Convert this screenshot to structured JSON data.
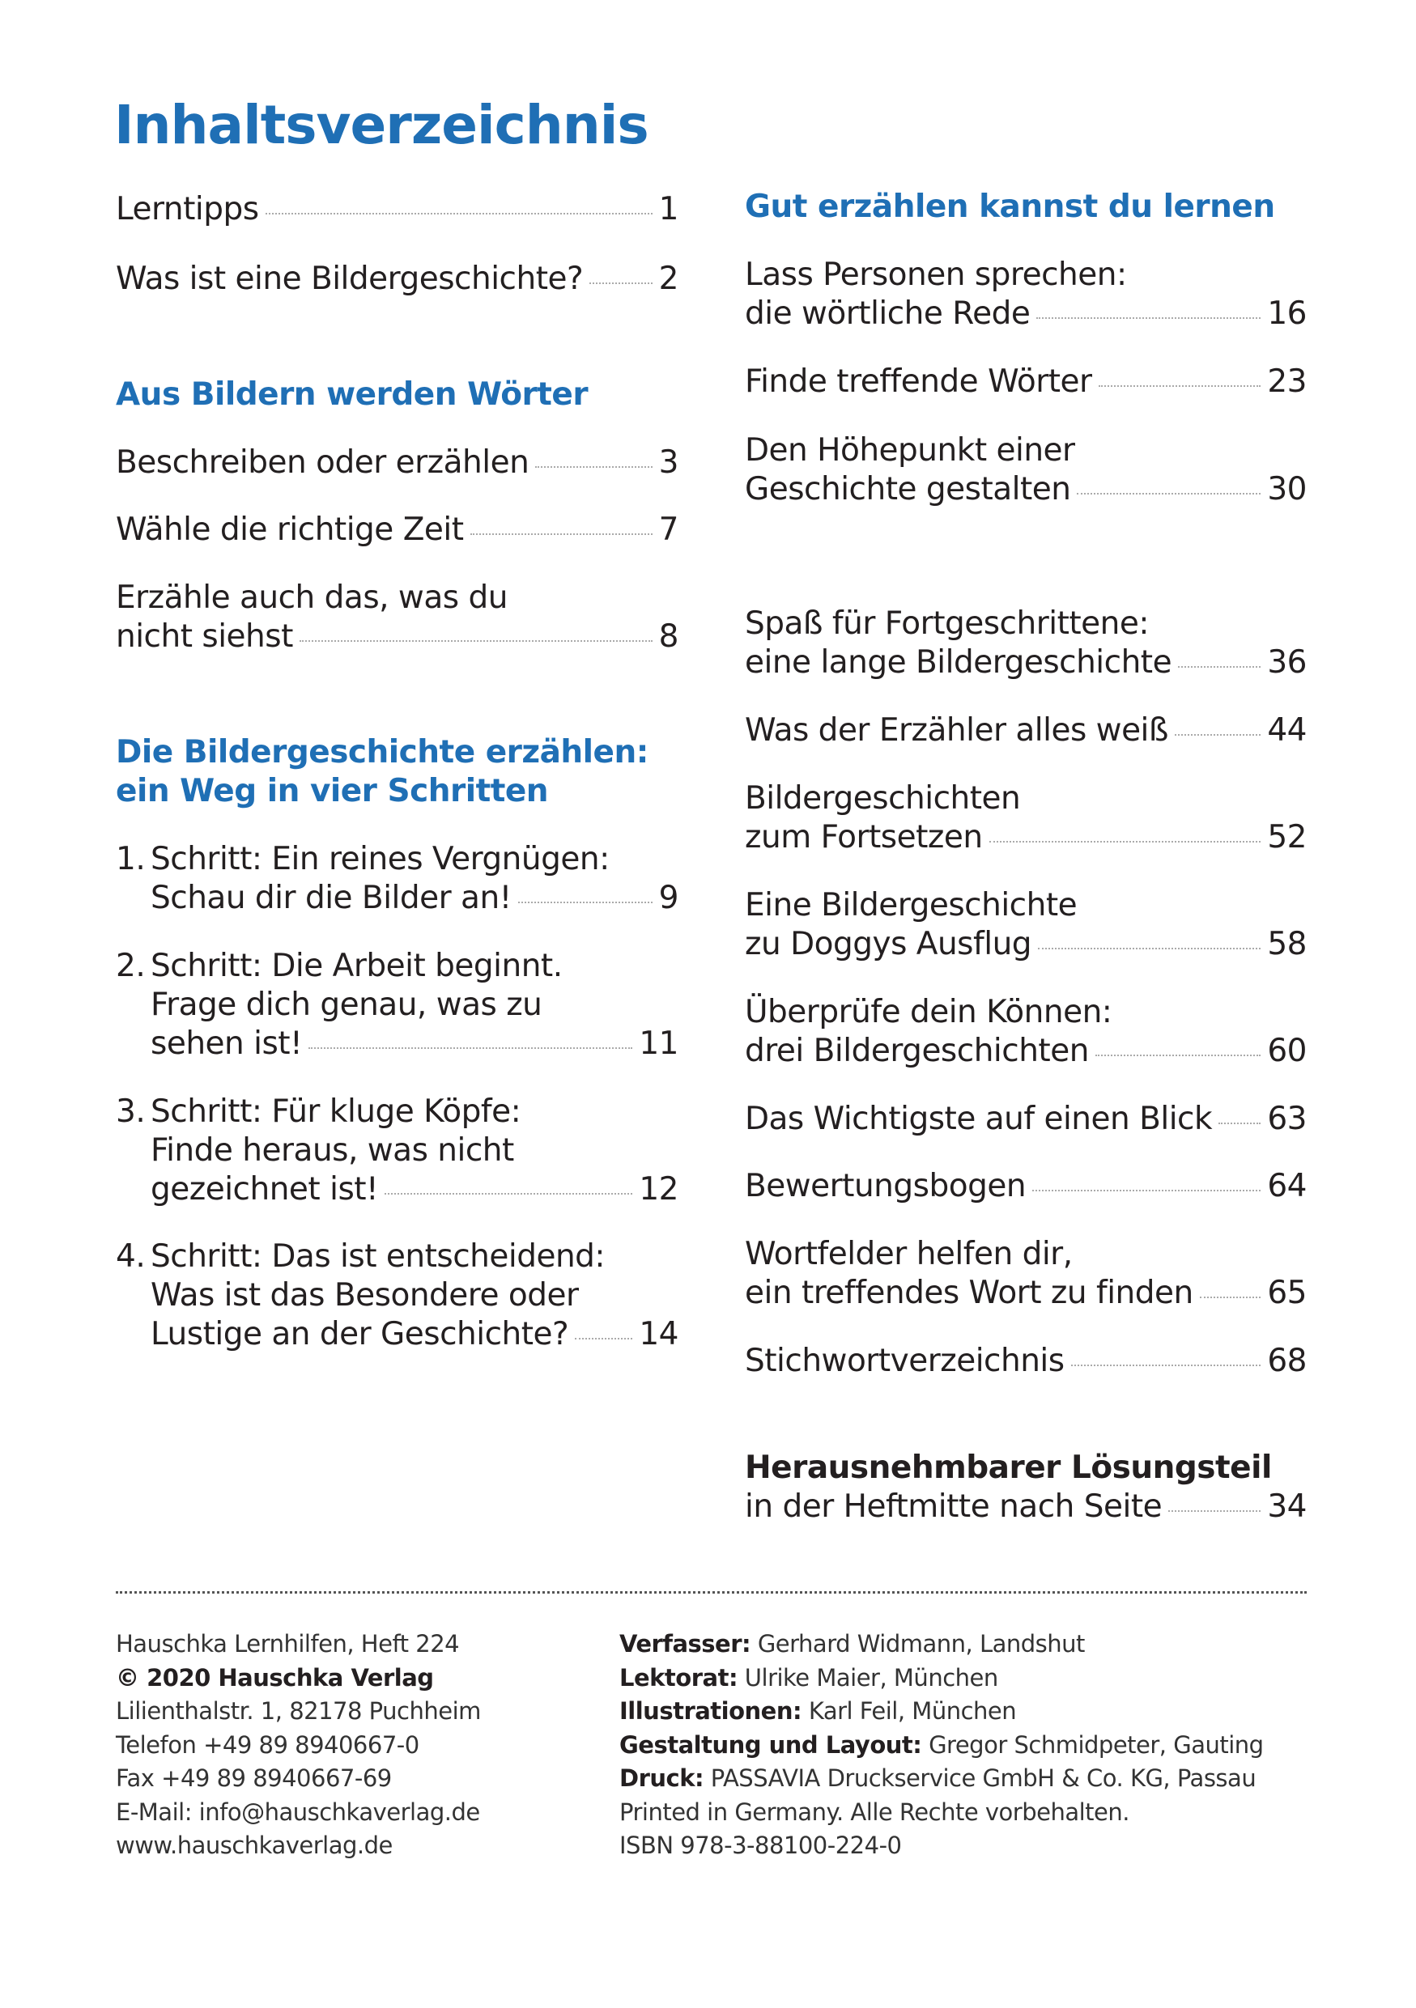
{
  "title": "Inhaltsverzeichnis",
  "left_column": [
    {
      "type": "entry",
      "lines": [
        "Lerntipps"
      ],
      "page": "1"
    },
    {
      "type": "entry",
      "lines": [
        "Was ist eine Bildergeschichte?"
      ],
      "page": "2"
    },
    {
      "type": "heading",
      "lines": [
        "Aus Bildern werden Wörter"
      ]
    },
    {
      "type": "entry",
      "lines": [
        "Beschreiben oder erzählen"
      ],
      "page": "3"
    },
    {
      "type": "entry",
      "lines": [
        "Wähle die richtige Zeit"
      ],
      "page": "7"
    },
    {
      "type": "entry",
      "lines": [
        "Erzähle auch das, was du",
        "nicht siehst"
      ],
      "page": "8"
    },
    {
      "type": "heading",
      "lines": [
        "Die Bildergeschichte erzählen:",
        "ein Weg in vier Schritten"
      ]
    },
    {
      "type": "entry",
      "number": "1.",
      "lines": [
        "Schritt: Ein reines Vergnügen:",
        "Schau dir die Bilder an!"
      ],
      "page": "9"
    },
    {
      "type": "entry",
      "number": "2.",
      "lines": [
        "Schritt: Die Arbeit beginnt.",
        "Frage dich genau, was zu",
        "sehen ist!"
      ],
      "page": "11"
    },
    {
      "type": "entry",
      "number": "3.",
      "lines": [
        "Schritt: Für kluge Köpfe:",
        "Finde heraus, was nicht",
        "gezeichnet ist!"
      ],
      "page": "12"
    },
    {
      "type": "entry",
      "number": "4.",
      "lines": [
        "Schritt: Das ist entscheidend:",
        "Was ist das Besondere oder",
        "Lustige an der Geschichte?"
      ],
      "page": "14"
    }
  ],
  "right_column": [
    {
      "type": "heading",
      "lines": [
        "Gut erzählen kannst du lernen"
      ]
    },
    {
      "type": "entry",
      "lines": [
        "Lass Personen sprechen:",
        "die wörtliche Rede"
      ],
      "page": "16"
    },
    {
      "type": "entry",
      "lines": [
        "Finde treffende Wörter"
      ],
      "page": "23"
    },
    {
      "type": "entry",
      "lines": [
        "Den Höhepunkt einer",
        "Geschichte gestalten"
      ],
      "page": "30"
    },
    {
      "type": "entry",
      "lines": [
        "Spaß für Fortgeschrittene:",
        "eine lange Bildergeschichte"
      ],
      "page": "36"
    },
    {
      "type": "entry",
      "lines": [
        "Was der Erzähler alles weiß"
      ],
      "page": "44"
    },
    {
      "type": "entry",
      "lines": [
        "Bildergeschichten",
        "zum Fortsetzen"
      ],
      "page": "52"
    },
    {
      "type": "entry",
      "lines": [
        "Eine Bildergeschichte",
        "zu Doggys Ausflug"
      ],
      "page": "58"
    },
    {
      "type": "entry",
      "lines": [
        "Überprüfe dein Können:",
        "drei Bildergeschichten"
      ],
      "page": "60"
    },
    {
      "type": "entry",
      "lines": [
        "Das Wichtigste auf einen Blick"
      ],
      "page": "63"
    },
    {
      "type": "entry",
      "lines": [
        "Bewertungsbogen"
      ],
      "page": "64"
    },
    {
      "type": "entry",
      "lines": [
        "Wortfelder helfen dir,",
        "ein treffendes Wort zu finden"
      ],
      "page": "65"
    },
    {
      "type": "entry",
      "lines": [
        "Stichwortverzeichnis"
      ],
      "page": "68"
    },
    {
      "type": "entry",
      "bold_first": true,
      "lines": [
        "Herausnehmbarer Lösungsteil",
        "in der Heftmitte nach Seite"
      ],
      "page": "34"
    }
  ],
  "footer": {
    "left": [
      {
        "text": "Hauschka Lernhilfen, Heft 224"
      },
      {
        "bold": "© 2020 Hauschka Verlag",
        "text": ""
      },
      {
        "text": "Lilienthalstr. 1, 82178 Puchheim"
      },
      {
        "text": "Telefon +49 89 8940667-0"
      },
      {
        "text": "Fax +49 89 8940667-69"
      },
      {
        "text": "E-Mail: info@hauschkaverlag.de"
      },
      {
        "text": "www.hauschkaverlag.de"
      }
    ],
    "right": [
      {
        "bold": "Verfasser:",
        "text": " Gerhard Widmann, Landshut"
      },
      {
        "bold": "Lektorat:",
        "text": " Ulrike Maier, München"
      },
      {
        "bold": "Illustrationen:",
        "text": " Karl Feil, München"
      },
      {
        "bold": "Gestaltung und Layout:",
        "text": " Gregor Schmidpeter, Gauting"
      },
      {
        "bold": "Druck:",
        "text": " PASSAVIA Druckservice GmbH & Co. KG, Passau"
      },
      {
        "text": "Printed in Germany. Alle Rechte vorbehalten."
      },
      {
        "text": "ISBN 978-3-88100-224-0"
      }
    ]
  },
  "colors": {
    "accent": "#1f6fb5",
    "text": "#231f20"
  }
}
